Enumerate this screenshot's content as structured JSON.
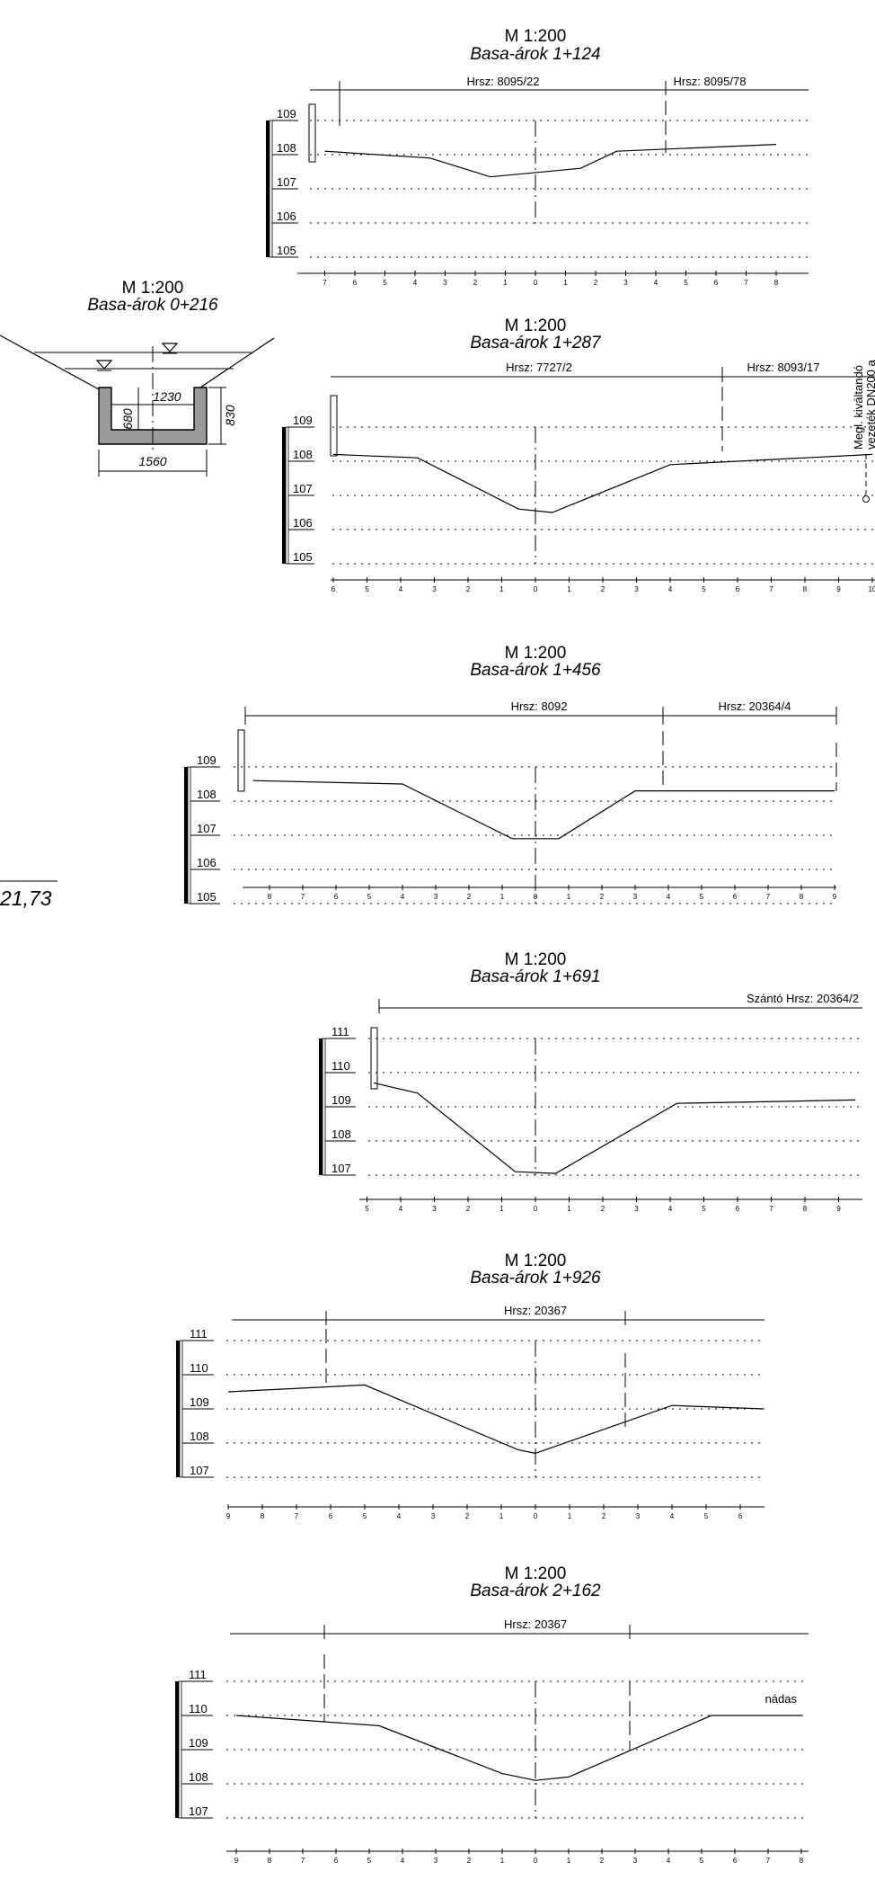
{
  "header_scale": "M 1:200",
  "cross_section": {
    "scale": "M 1:200",
    "title": "Basa-árok 0+216",
    "dim_inner_width": "1230",
    "dim_inner_height": "680",
    "dim_outer_height": "830",
    "dim_outer_width": "1560"
  },
  "left_value": "21,73",
  "side_note": "Megl. kiváltandó",
  "side_note_2": "vezeték DN200 a",
  "sections": [
    {
      "scale": "M 1:200",
      "title": "Basa-árok 1+124",
      "owners": [
        "Hrsz: 8095/22",
        "Hrsz: 8095/78"
      ],
      "elevations": [
        "109",
        "108",
        "107",
        "106",
        "105"
      ],
      "ticks": [
        "7",
        "6",
        "5",
        "4",
        "3",
        "2",
        "1",
        "0",
        "1",
        "2",
        "3",
        "4",
        "5",
        "6",
        "7",
        "8"
      ],
      "note": "",
      "profile": [
        [
          -7,
          108.1
        ],
        [
          -3.5,
          107.9
        ],
        [
          -1.5,
          107.35
        ],
        [
          1.5,
          107.6
        ],
        [
          2.7,
          108.1
        ],
        [
          8,
          108.3
        ]
      ]
    },
    {
      "scale": "M 1:200",
      "title": "Basa-árok 1+287",
      "owners": [
        "Hrsz: 7727/2",
        "Hrsz: 8093/17"
      ],
      "elevations": [
        "109",
        "108",
        "107",
        "106",
        "105"
      ],
      "ticks": [
        "6",
        "5",
        "4",
        "3",
        "2",
        "1",
        "0",
        "1",
        "2",
        "3",
        "4",
        "5",
        "6",
        "7",
        "8",
        "9",
        "10"
      ],
      "note": "",
      "profile": [
        [
          -6,
          108.2
        ],
        [
          -3.5,
          108.1
        ],
        [
          -0.5,
          106.6
        ],
        [
          0.5,
          106.5
        ],
        [
          4,
          107.9
        ],
        [
          10,
          108.2
        ]
      ]
    },
    {
      "scale": "M 1:200",
      "title": "Basa-árok 1+456",
      "owners": [
        "Hrsz: 8092",
        "Hrsz: 20364/4"
      ],
      "elevations": [
        "109",
        "108",
        "107",
        "106",
        "105"
      ],
      "ticks": [
        "8",
        "7",
        "6",
        "5",
        "4",
        "3",
        "2",
        "1",
        "0",
        "1",
        "2",
        "3",
        "4",
        "5",
        "6",
        "7",
        "8",
        "9"
      ],
      "note": "",
      "profile": [
        [
          -8.5,
          108.6
        ],
        [
          -4,
          108.5
        ],
        [
          -0.7,
          106.9
        ],
        [
          0.7,
          106.9
        ],
        [
          3,
          108.3
        ],
        [
          9,
          108.3
        ]
      ]
    },
    {
      "scale": "M 1:200",
      "title": "Basa-árok 1+691",
      "owners": [
        "Szántó Hrsz: 20364/2"
      ],
      "elevations": [
        "111",
        "110",
        "109",
        "108",
        "107"
      ],
      "ticks": [
        "5",
        "4",
        "3",
        "2",
        "1",
        "0",
        "1",
        "2",
        "3",
        "4",
        "5",
        "6",
        "7",
        "8",
        "9"
      ],
      "note": "",
      "profile": [
        [
          -4.8,
          109.7
        ],
        [
          -3.5,
          109.4
        ],
        [
          -0.6,
          107.1
        ],
        [
          0.6,
          107.05
        ],
        [
          4.2,
          109.1
        ],
        [
          9.5,
          109.2
        ]
      ]
    },
    {
      "scale": "M 1:200",
      "title": "Basa-árok 1+926",
      "owners": [
        "Hrsz: 20367"
      ],
      "elevations": [
        "111",
        "110",
        "109",
        "108",
        "107"
      ],
      "ticks": [
        "9",
        "8",
        "7",
        "6",
        "5",
        "4",
        "3",
        "2",
        "1",
        "0",
        "1",
        "2",
        "3",
        "4",
        "5",
        "6"
      ],
      "note": "",
      "profile": [
        [
          -9,
          109.5
        ],
        [
          -5,
          109.7
        ],
        [
          -0.5,
          107.8
        ],
        [
          0,
          107.7
        ],
        [
          4,
          109.1
        ],
        [
          6.7,
          109.0
        ]
      ]
    },
    {
      "scale": "M 1:200",
      "title": "Basa-árok 2+162",
      "owners": [
        "Hrsz: 20367"
      ],
      "elevations": [
        "111",
        "110",
        "109",
        "108",
        "107"
      ],
      "ticks": [
        "9",
        "8",
        "7",
        "6",
        "5",
        "4",
        "3",
        "2",
        "1",
        "0",
        "1",
        "2",
        "3",
        "4",
        "5",
        "6",
        "7",
        "8"
      ],
      "note": "nádas",
      "profile": [
        [
          -9,
          110.0
        ],
        [
          -4.7,
          109.7
        ],
        [
          -1,
          108.3
        ],
        [
          0,
          108.1
        ],
        [
          1,
          108.2
        ],
        [
          5.3,
          110.0
        ],
        [
          8,
          110.0
        ]
      ]
    }
  ]
}
